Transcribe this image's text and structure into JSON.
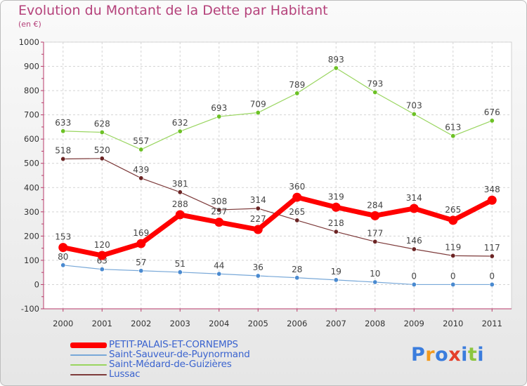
{
  "header": {
    "title": "Evolution du Montant de la Dette par Habitant",
    "subtitle": "(en €)"
  },
  "logo": {
    "letters": [
      "P",
      "r",
      "o",
      "x",
      "i",
      "t",
      "i"
    ],
    "colors": [
      "#3b7ddd",
      "#f29a1f",
      "#3b7ddd",
      "#e43f2b",
      "#3b7ddd",
      "#8cc63f",
      "#3b7ddd"
    ]
  },
  "chart_data": {
    "type": "line",
    "x": [
      "2000",
      "2001",
      "2002",
      "2003",
      "2004",
      "2005",
      "2006",
      "2007",
      "2008",
      "2009",
      "2010",
      "2011"
    ],
    "ylim": [
      -100,
      1000
    ],
    "yticks": [
      -100,
      0,
      100,
      200,
      300,
      400,
      500,
      600,
      700,
      800,
      900,
      1000
    ],
    "grid": true,
    "legend_position": "bottom-left",
    "series": [
      {
        "name": "Saint-Médard-de-Guizières",
        "color": "#99d55f",
        "marker": "#6cc125",
        "width": 1.2,
        "values": [
          633,
          628,
          557,
          632,
          693,
          709,
          789,
          893,
          793,
          703,
          613,
          676
        ]
      },
      {
        "name": "Lussac",
        "color": "#7d3a3a",
        "marker": "#6b2424",
        "width": 1.2,
        "values": [
          518,
          520,
          439,
          381,
          308,
          314,
          265,
          218,
          177,
          146,
          119,
          117
        ]
      },
      {
        "name": "Saint-Sauveur-de-Puynormand",
        "color": "#78a8d8",
        "marker": "#4a8ad0",
        "width": 1.2,
        "values": [
          80,
          63,
          57,
          51,
          44,
          36,
          28,
          19,
          10,
          0,
          0,
          0
        ]
      },
      {
        "name": "PETIT-PALAIS-ET-CORNEMPS",
        "color": "#ff0000",
        "marker": "#ff0000",
        "width": 7,
        "values": [
          153,
          120,
          169,
          288,
          257,
          227,
          360,
          319,
          284,
          314,
          265,
          348
        ]
      }
    ],
    "legend": [
      {
        "name": "PETIT-PALAIS-ET-CORNEMPS",
        "color": "#ff0000",
        "thickness": 8
      },
      {
        "name": "Saint-Sauveur-de-Puynormand",
        "color": "#78a8d8",
        "thickness": 2
      },
      {
        "name": "Saint-Médard-de-Guizières",
        "color": "#99d55f",
        "thickness": 2
      },
      {
        "name": "Lussac",
        "color": "#7d3a3a",
        "thickness": 2
      }
    ]
  }
}
